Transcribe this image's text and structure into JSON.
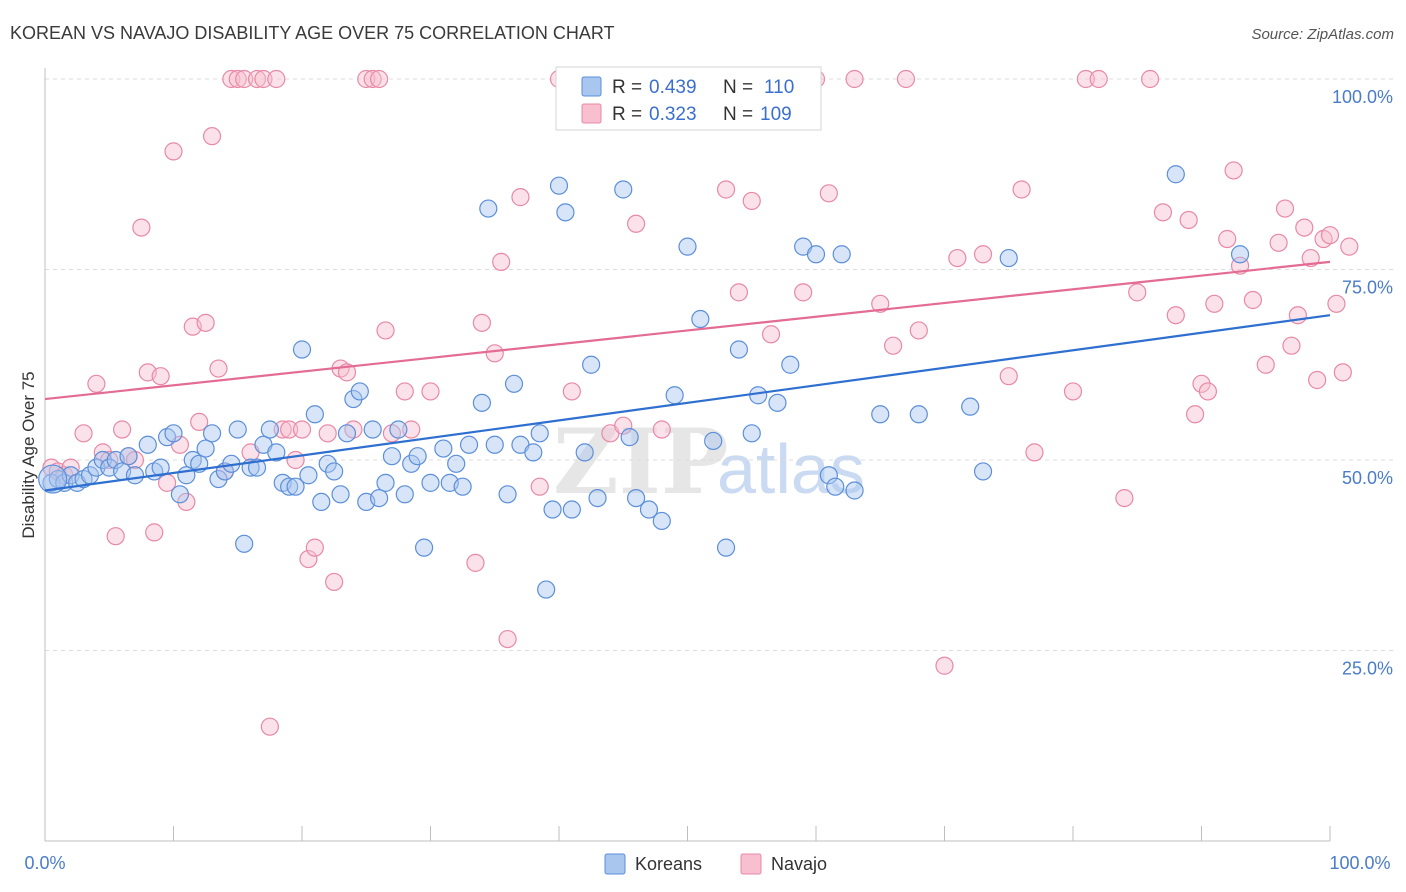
{
  "title": "KOREAN VS NAVAJO DISABILITY AGE OVER 75 CORRELATION CHART",
  "source": "Source: ZipAtlas.com",
  "watermark": {
    "zip": "ZIP",
    "atlas": "atlas"
  },
  "legend": {
    "rows": [
      {
        "r_label": "R =",
        "r_value": "0.439",
        "n_label": "N =",
        "n_value": "110"
      },
      {
        "r_label": "R =",
        "r_value": "0.323",
        "n_label": "N =",
        "n_value": "109"
      }
    ]
  },
  "bottom_legend": {
    "koreans": "Koreans",
    "navajo": "Navajo"
  },
  "colors": {
    "koreans_fill": "#a9c6ef",
    "koreans_stroke": "#5b8fd9",
    "koreans_line": "#2e6fd0",
    "navajo_fill": "#f7bfd0",
    "navajo_stroke": "#e889a6",
    "navajo_line": "#e36b94"
  },
  "chart_data": {
    "type": "scatter",
    "title": "KOREAN VS NAVAJO DISABILITY AGE OVER 75 CORRELATION CHART",
    "xlabel": "",
    "ylabel": "Disability Age Over 75",
    "xlim": [
      0,
      100
    ],
    "ylim": [
      0,
      100
    ],
    "x_tick_labels": [
      "0.0%",
      "100.0%"
    ],
    "y_tick_labels": [
      "25.0%",
      "50.0%",
      "75.0%",
      "100.0%"
    ],
    "y_ticks": [
      25,
      50,
      75,
      100
    ],
    "grid": true,
    "legend_position": "top-center",
    "series": [
      {
        "name": "Koreans",
        "R": 0.439,
        "N": 110,
        "trend": {
          "x": [
            0,
            100
          ],
          "y": [
            46,
            69
          ]
        },
        "points": [
          [
            0.5,
            47
          ],
          [
            1,
            47.5
          ],
          [
            1.5,
            47
          ],
          [
            2,
            48
          ],
          [
            2.5,
            47
          ],
          [
            3,
            47.5
          ],
          [
            3.5,
            48
          ],
          [
            4,
            49
          ],
          [
            4.5,
            50
          ],
          [
            5,
            49
          ],
          [
            5.5,
            50
          ],
          [
            6,
            48.5
          ],
          [
            6.5,
            50.5
          ],
          [
            7,
            48
          ],
          [
            8,
            52
          ],
          [
            8.5,
            48.5
          ],
          [
            9,
            49
          ],
          [
            9.5,
            53
          ],
          [
            10,
            53.5
          ],
          [
            10.5,
            45.5
          ],
          [
            11,
            48
          ],
          [
            11.5,
            50
          ],
          [
            12,
            49.5
          ],
          [
            12.5,
            51.5
          ],
          [
            13,
            53.5
          ],
          [
            13.5,
            47.5
          ],
          [
            14,
            48.5
          ],
          [
            14.5,
            49.5
          ],
          [
            15,
            54
          ],
          [
            15.5,
            39
          ],
          [
            16,
            49
          ],
          [
            16.5,
            49
          ],
          [
            17,
            52
          ],
          [
            17.5,
            54
          ],
          [
            18,
            51
          ],
          [
            18.5,
            47
          ],
          [
            19,
            46.5
          ],
          [
            19.5,
            46.5
          ],
          [
            20,
            64.5
          ],
          [
            20.5,
            48
          ],
          [
            21,
            56
          ],
          [
            21.5,
            44.5
          ],
          [
            22,
            49.5
          ],
          [
            22.5,
            48.5
          ],
          [
            23,
            45.5
          ],
          [
            23.5,
            53.5
          ],
          [
            24,
            58
          ],
          [
            24.5,
            59
          ],
          [
            25,
            44.5
          ],
          [
            25.5,
            54
          ],
          [
            26,
            45
          ],
          [
            26.5,
            47
          ],
          [
            27,
            50.5
          ],
          [
            27.5,
            54
          ],
          [
            28,
            45.5
          ],
          [
            28.5,
            49.5
          ],
          [
            29,
            50.5
          ],
          [
            29.5,
            38.5
          ],
          [
            30,
            47
          ],
          [
            31,
            51.5
          ],
          [
            31.5,
            47
          ],
          [
            32,
            49.5
          ],
          [
            32.5,
            46.5
          ],
          [
            33,
            52
          ],
          [
            34,
            57.5
          ],
          [
            34.5,
            83
          ],
          [
            35,
            52
          ],
          [
            36,
            45.5
          ],
          [
            36.5,
            60
          ],
          [
            37,
            52
          ],
          [
            38,
            51
          ],
          [
            38.5,
            53.5
          ],
          [
            39,
            33
          ],
          [
            39.5,
            43.5
          ],
          [
            40,
            86
          ],
          [
            40.5,
            82.5
          ],
          [
            41,
            43.5
          ],
          [
            42,
            51
          ],
          [
            42.5,
            62.5
          ],
          [
            43,
            45
          ],
          [
            45,
            85.5
          ],
          [
            45.5,
            53
          ],
          [
            46,
            45
          ],
          [
            47,
            43.5
          ],
          [
            48,
            42
          ],
          [
            49,
            58.5
          ],
          [
            50,
            78
          ],
          [
            51,
            68.5
          ],
          [
            52,
            52.5
          ],
          [
            53,
            38.5
          ],
          [
            54,
            64.5
          ],
          [
            55,
            53.5
          ],
          [
            55.5,
            58.5
          ],
          [
            57,
            57.5
          ],
          [
            58,
            62.5
          ],
          [
            59,
            78
          ],
          [
            60,
            77
          ],
          [
            61,
            48
          ],
          [
            61.5,
            46.5
          ],
          [
            62,
            77
          ],
          [
            63,
            46
          ],
          [
            65,
            56
          ],
          [
            68,
            56
          ],
          [
            72,
            57
          ],
          [
            73,
            48.5
          ],
          [
            75,
            76.5
          ],
          [
            88,
            87.5
          ],
          [
            93,
            77
          ]
        ]
      },
      {
        "name": "Navajo",
        "R": 0.323,
        "N": 109,
        "trend": {
          "x": [
            0,
            100
          ],
          "y": [
            58,
            76
          ]
        },
        "points": [
          [
            0.5,
            49
          ],
          [
            1,
            48.5
          ],
          [
            1.5,
            48
          ],
          [
            2,
            49
          ],
          [
            3,
            53.5
          ],
          [
            4,
            60
          ],
          [
            4.5,
            51
          ],
          [
            5,
            50
          ],
          [
            5.5,
            40
          ],
          [
            6,
            54
          ],
          [
            6.5,
            50.5
          ],
          [
            7,
            50
          ],
          [
            7.5,
            80.5
          ],
          [
            8,
            61.5
          ],
          [
            8.5,
            40.5
          ],
          [
            9,
            61
          ],
          [
            9.5,
            47
          ],
          [
            10,
            90.5
          ],
          [
            10.5,
            52
          ],
          [
            11,
            44.5
          ],
          [
            11.5,
            67.5
          ],
          [
            12,
            55
          ],
          [
            12.5,
            68
          ],
          [
            13,
            92.5
          ],
          [
            13.5,
            62
          ],
          [
            14,
            48.5
          ],
          [
            14.5,
            100
          ],
          [
            15,
            100
          ],
          [
            15.5,
            100
          ],
          [
            16,
            51
          ],
          [
            16.5,
            100
          ],
          [
            17,
            100
          ],
          [
            17.5,
            15
          ],
          [
            18,
            100
          ],
          [
            18.5,
            54
          ],
          [
            19,
            54
          ],
          [
            19.5,
            50
          ],
          [
            20,
            54
          ],
          [
            20.5,
            37
          ],
          [
            21,
            38.5
          ],
          [
            22,
            53.5
          ],
          [
            22.5,
            34
          ],
          [
            23,
            62
          ],
          [
            23.5,
            61.5
          ],
          [
            24,
            54
          ],
          [
            25,
            100
          ],
          [
            25.5,
            100
          ],
          [
            26,
            100
          ],
          [
            26.5,
            67
          ],
          [
            27,
            53.5
          ],
          [
            28,
            59
          ],
          [
            28.5,
            54
          ],
          [
            30,
            59
          ],
          [
            33.5,
            36.5
          ],
          [
            34,
            68
          ],
          [
            35,
            64
          ],
          [
            35.5,
            76
          ],
          [
            36,
            26.5
          ],
          [
            37,
            84.5
          ],
          [
            38.5,
            46.5
          ],
          [
            40,
            100
          ],
          [
            41,
            59
          ],
          [
            44,
            53.5
          ],
          [
            45,
            54.5
          ],
          [
            46,
            81
          ],
          [
            47,
            100
          ],
          [
            48,
            54
          ],
          [
            50,
            100
          ],
          [
            53,
            85.5
          ],
          [
            54,
            72
          ],
          [
            55,
            84
          ],
          [
            56.5,
            66.5
          ],
          [
            59,
            72
          ],
          [
            60,
            100
          ],
          [
            61,
            85
          ],
          [
            63,
            100
          ],
          [
            65,
            70.5
          ],
          [
            66,
            65
          ],
          [
            67,
            100
          ],
          [
            68,
            67
          ],
          [
            70,
            23
          ],
          [
            71,
            76.5
          ],
          [
            73,
            77
          ],
          [
            75,
            61
          ],
          [
            76,
            85.5
          ],
          [
            77,
            51
          ],
          [
            80,
            59
          ],
          [
            81,
            100
          ],
          [
            82,
            100
          ],
          [
            84,
            45
          ],
          [
            85,
            72
          ],
          [
            86,
            100
          ],
          [
            87,
            82.5
          ],
          [
            88,
            69
          ],
          [
            89,
            81.5
          ],
          [
            89.5,
            56
          ],
          [
            90,
            60
          ],
          [
            90.5,
            59
          ],
          [
            91,
            70.5
          ],
          [
            92,
            79
          ],
          [
            92.5,
            88
          ],
          [
            93,
            75.5
          ],
          [
            94,
            71
          ],
          [
            95,
            62.5
          ],
          [
            96,
            78.5
          ],
          [
            96.5,
            83
          ],
          [
            97,
            65
          ],
          [
            97.5,
            69
          ],
          [
            98,
            80.5
          ],
          [
            98.5,
            76.5
          ],
          [
            99,
            60.5
          ],
          [
            99.5,
            79
          ],
          [
            100,
            79.5
          ],
          [
            100.5,
            70.5
          ],
          [
            101,
            61.5
          ],
          [
            101.5,
            78
          ]
        ]
      }
    ]
  }
}
